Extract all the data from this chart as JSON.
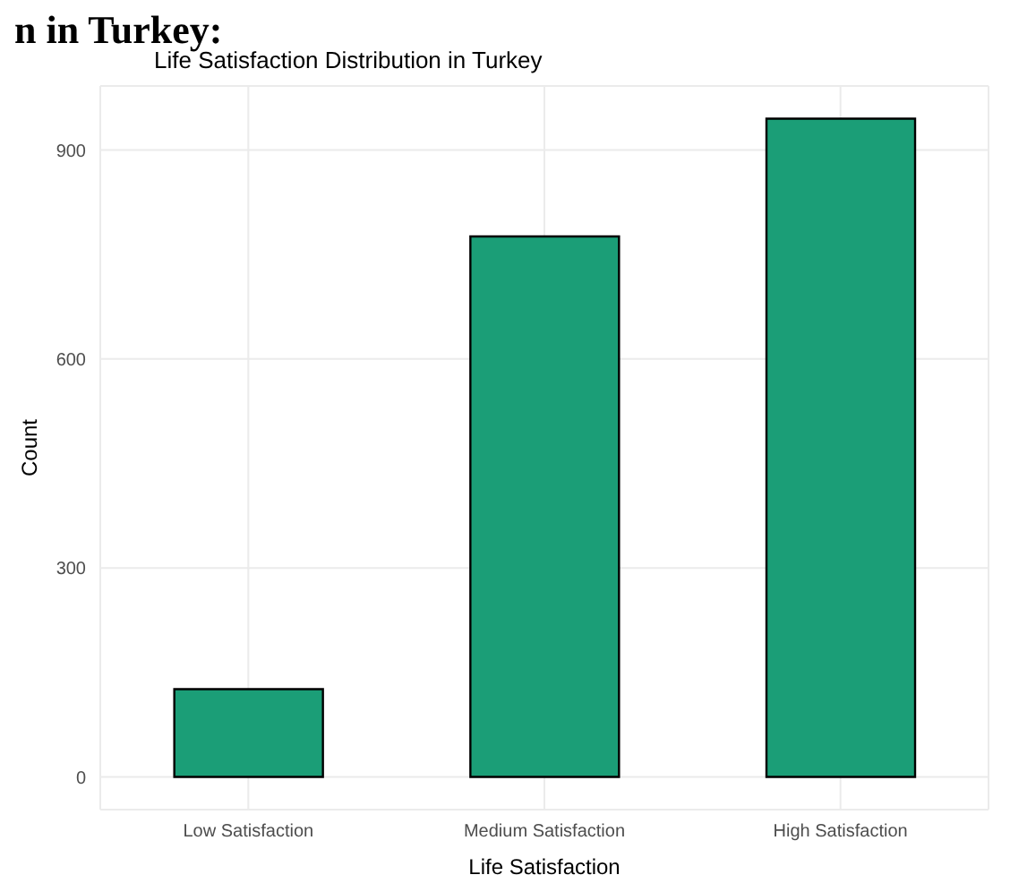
{
  "chart_data": {
    "type": "bar",
    "title": "Life Satisfaction Distribution in Turkey",
    "annotations": [
      "n in Turkey:"
    ],
    "xlabel": "Life Satisfaction",
    "ylabel": "Count",
    "categories": [
      "Low Satisfaction",
      "Medium Satisfaction",
      "High Satisfaction"
    ],
    "values": [
      126,
      776,
      945
    ],
    "color": "#1b9e77",
    "ylim": [
      -47,
      992
    ],
    "yticks": [
      0,
      300,
      600,
      900
    ],
    "grid": true
  }
}
